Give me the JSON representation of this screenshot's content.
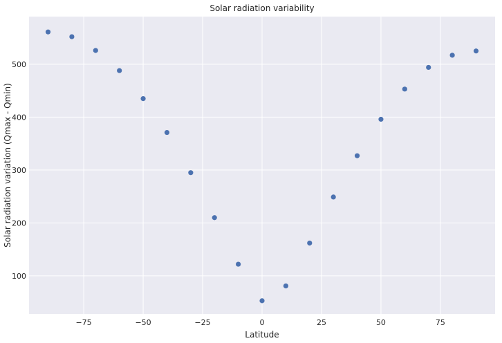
{
  "chart_data": {
    "type": "scatter",
    "title": "Solar radiation variability",
    "xlabel": "Latitude",
    "ylabel": "Solar radiation variation (Qmax - Qmin)",
    "xlim": [
      -98,
      98
    ],
    "ylim": [
      28,
      590
    ],
    "xticks": [
      -75,
      -50,
      -25,
      0,
      25,
      50,
      75
    ],
    "xtick_labels": [
      "−75",
      "−50",
      "−25",
      "0",
      "25",
      "50",
      "75"
    ],
    "yticks": [
      100,
      200,
      300,
      400,
      500
    ],
    "ytick_labels": [
      "100",
      "200",
      "300",
      "400",
      "500"
    ],
    "grid": true,
    "marker_color": "#4c72b0",
    "background_color": "#eaeaf2",
    "grid_color": "#ffffff",
    "points": [
      {
        "x": -90,
        "y": 561
      },
      {
        "x": -80,
        "y": 552
      },
      {
        "x": -70,
        "y": 526
      },
      {
        "x": -60,
        "y": 488
      },
      {
        "x": -50,
        "y": 435
      },
      {
        "x": -40,
        "y": 371
      },
      {
        "x": -30,
        "y": 295
      },
      {
        "x": -20,
        "y": 210
      },
      {
        "x": -10,
        "y": 122
      },
      {
        "x": 0,
        "y": 53
      },
      {
        "x": 10,
        "y": 81
      },
      {
        "x": 20,
        "y": 162
      },
      {
        "x": 30,
        "y": 249
      },
      {
        "x": 40,
        "y": 327
      },
      {
        "x": 50,
        "y": 396
      },
      {
        "x": 60,
        "y": 453
      },
      {
        "x": 70,
        "y": 494
      },
      {
        "x": 80,
        "y": 517
      },
      {
        "x": 90,
        "y": 525
      }
    ]
  }
}
